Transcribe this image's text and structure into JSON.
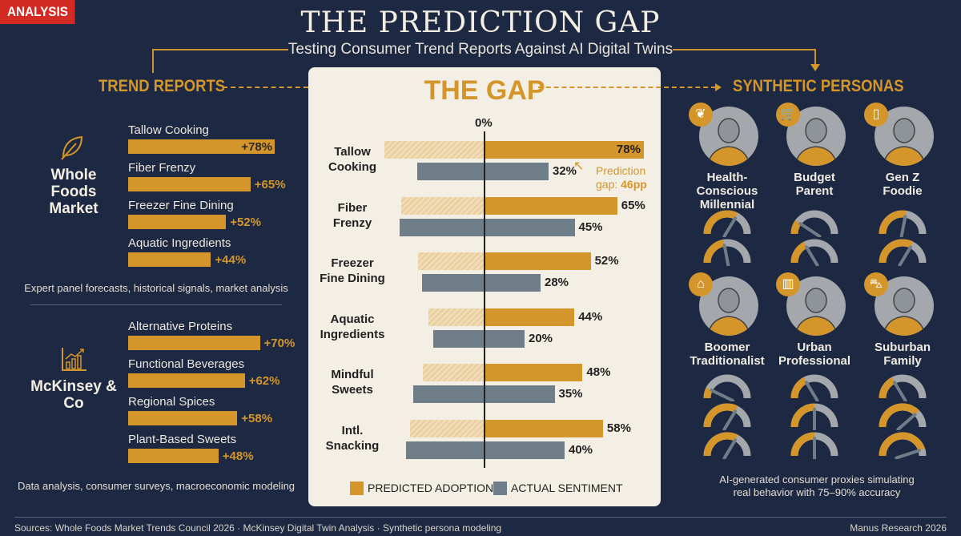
{
  "badge": "ANALYSIS",
  "title": "THE PREDICTION GAP",
  "subtitle": "Testing Consumer Trend Reports Against AI Digital Twins",
  "sections": {
    "left": "TREND REPORTS",
    "center": "THE GAP",
    "right": "SYNTHETIC PERSONAS"
  },
  "colors": {
    "background": "#1d2943",
    "gold": "#d4962a",
    "gray": "#6f7d88",
    "card": "#f3efe4",
    "badge": "#d42a24"
  },
  "trend_reports": [
    {
      "source": "Whole Foods Market",
      "icon": "leaf-icon",
      "caption": "Expert panel forecasts, historical signals, market analysis",
      "items": [
        {
          "label": "Tallow Cooking",
          "value": 78,
          "display": "+78%"
        },
        {
          "label": "Fiber Frenzy",
          "value": 65,
          "display": "+65%"
        },
        {
          "label": "Freezer Fine Dining",
          "value": 52,
          "display": "+52%"
        },
        {
          "label": "Aquatic Ingredients",
          "value": 44,
          "display": "+44%"
        }
      ]
    },
    {
      "source": "McKinsey & Co",
      "icon": "growth-chart-icon",
      "caption": "Data analysis, consumer surveys, macroeconomic modeling",
      "items": [
        {
          "label": "Alternative Proteins",
          "value": 70,
          "display": "+70%"
        },
        {
          "label": "Functional Beverages",
          "value": 62,
          "display": "+62%"
        },
        {
          "label": "Regional Spices",
          "value": 58,
          "display": "+58%"
        },
        {
          "label": "Plant-Based Sweets",
          "value": 48,
          "display": "+48%"
        }
      ]
    }
  ],
  "chart_data": {
    "type": "bar",
    "axis_label": "0%",
    "categories": [
      "Tallow Cooking",
      "Fiber Frenzy",
      "Freezer Fine Dining",
      "Aquatic Ingredients",
      "Mindful Sweets",
      "Intl. Snacking"
    ],
    "category_lines": [
      [
        "Tallow",
        "Cooking"
      ],
      [
        "Fiber",
        "Frenzy"
      ],
      [
        "Freezer",
        "Fine Dining"
      ],
      [
        "Aquatic",
        "Ingredients"
      ],
      [
        "Mindful",
        "Sweets"
      ],
      [
        "Intl.",
        "Snacking"
      ]
    ],
    "series": [
      {
        "name": "PREDICTED ADOPTION",
        "color": "#d4962a",
        "values": [
          78,
          65,
          52,
          44,
          48,
          58
        ]
      },
      {
        "name": "ACTUAL SENTIMENT",
        "color": "#6f7d88",
        "values": [
          32,
          45,
          28,
          20,
          35,
          40
        ]
      }
    ],
    "annotation": {
      "text": "Prediction",
      "text2": "gap: ",
      "highlight": "46pp"
    },
    "legend": "bottom"
  },
  "personas": {
    "items": [
      {
        "name1": "Health-Conscious",
        "name2": "Millennial",
        "badge_icon": "leaf-icon",
        "gauges": [
          0.65,
          0.45
        ]
      },
      {
        "name1": "Budget",
        "name2": "Parent",
        "badge_icon": "shopping-cart-icon",
        "gauges": [
          0.2,
          0.35
        ]
      },
      {
        "name1": "Gen Z",
        "name2": "Foodie",
        "badge_icon": "smartphone-icon",
        "gauges": [
          0.55,
          0.65
        ]
      },
      {
        "name1": "Boomer",
        "name2": "Traditionalist",
        "badge_icon": "house-icon",
        "gauges": [
          0.15,
          0.65,
          0.65
        ]
      },
      {
        "name1": "Urban",
        "name2": "Professional",
        "badge_icon": "buildings-icon",
        "gauges": [
          0.35,
          0.5,
          0.5
        ]
      },
      {
        "name1": "Suburban",
        "name2": "Family",
        "badge_icon": "car-icon",
        "gauges": [
          0.35,
          0.75,
          0.9
        ]
      }
    ],
    "caption1": "AI-generated consumer proxies simulating",
    "caption2": "real behavior with 75–90% accuracy"
  },
  "footer": {
    "sources": "Sources: Whole Foods Market Trends Council 2026 · McKinsey Digital Twin Analysis · Synthetic persona modeling",
    "credit": "Manus Research 2026"
  }
}
